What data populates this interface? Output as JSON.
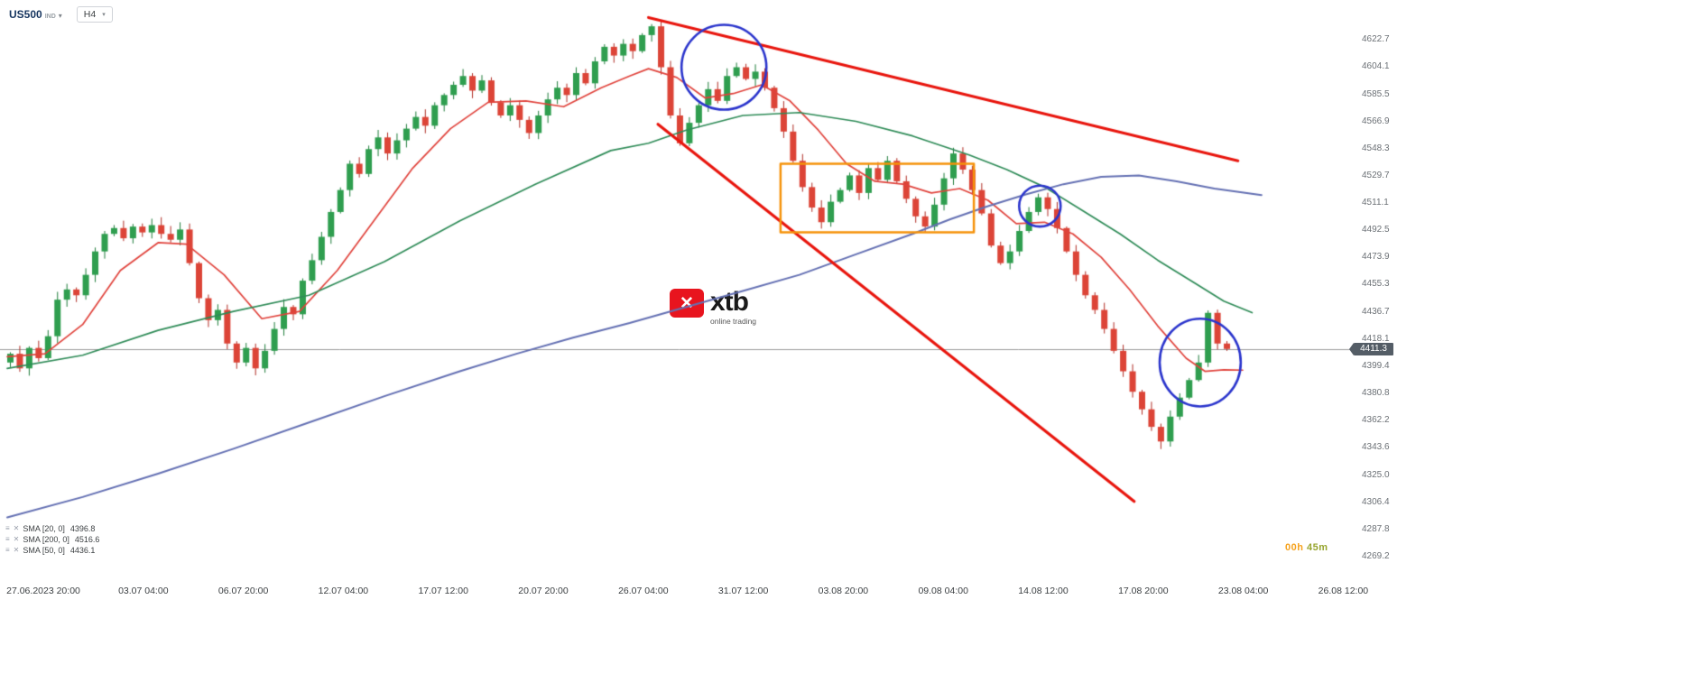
{
  "header": {
    "symbol": "US500",
    "symbol_type": "IND",
    "timeframe": "H4"
  },
  "watermark": {
    "brand": "xtb",
    "tagline": "online trading",
    "logo_glyph": "✕",
    "brand_red": "#e8141e"
  },
  "legend": {
    "rows": [
      {
        "label": "SMA [20, 0]",
        "value": "4396.8"
      },
      {
        "label": "SMA [200, 0]",
        "value": "4516.6"
      },
      {
        "label": "SMA [50, 0]",
        "value": "4436.1"
      }
    ]
  },
  "countdown": {
    "hours": "00h",
    "minutes": "45m"
  },
  "chart_data": {
    "type": "candlestick",
    "symbol": "US500",
    "timeframe": "H4",
    "ylim": [
      4255,
      4650
    ],
    "current_price": 4411.3,
    "current_price_label": "4411.3",
    "y_tick_labels": [
      "4622.7",
      "4604.1",
      "4585.5",
      "4566.9",
      "4548.3",
      "4529.7",
      "4511.1",
      "4492.5",
      "4473.9",
      "4455.3",
      "4436.7",
      "4418.1",
      "4399.4",
      "4380.8",
      "4362.2",
      "4343.6",
      "4325.0",
      "4306.4",
      "4287.8",
      "4269.2"
    ],
    "x_tick_labels": [
      "27.06.2023 20:00",
      "03.07 04:00",
      "06.07 20:00",
      "12.07 04:00",
      "17.07 12:00",
      "20.07 20:00",
      "26.07 04:00",
      "31.07 12:00",
      "03.08 20:00",
      "09.08 04:00",
      "14.08 12:00",
      "17.08 20:00",
      "23.08 04:00",
      "26.08 12:00"
    ],
    "first_open": 4402,
    "closes": [
      4408,
      4398,
      4412,
      4405,
      4420,
      4445,
      4452,
      4448,
      4462,
      4478,
      4490,
      4494,
      4487,
      4495,
      4491,
      4496,
      4490,
      4486,
      4493,
      4470,
      4446,
      4431,
      4438,
      4415,
      4402,
      4412,
      4398,
      4410,
      4425,
      4440,
      4435,
      4458,
      4472,
      4488,
      4505,
      4520,
      4538,
      4531,
      4548,
      4556,
      4545,
      4554,
      4562,
      4570,
      4564,
      4578,
      4585,
      4592,
      4598,
      4588,
      4595,
      4580,
      4571,
      4578,
      4568,
      4559,
      4571,
      4582,
      4590,
      4585,
      4600,
      4593,
      4608,
      4618,
      4612,
      4620,
      4615,
      4626,
      4632,
      4604,
      4571,
      4552,
      4566,
      4578,
      4589,
      4581,
      4598,
      4604,
      4596,
      4601,
      4590,
      4576,
      4560,
      4540,
      4522,
      4508,
      4498,
      4512,
      4520,
      4530,
      4518,
      4535,
      4527,
      4540,
      4526,
      4514,
      4502,
      4495,
      4510,
      4528,
      4545,
      4534,
      4520,
      4504,
      4482,
      4470,
      4478,
      4492,
      4505,
      4515,
      4507,
      4494,
      4478,
      4462,
      4448,
      4438,
      4425,
      4410,
      4396,
      4382,
      4370,
      4358,
      4348,
      4365,
      4378,
      4390,
      4402,
      4436,
      4415,
      4411.3
    ],
    "sma_lines": [
      {
        "name": "SMA 20",
        "value": 4396.8,
        "color_key": "sma20",
        "points": [
          [
            0,
            4406
          ],
          [
            4,
            4408
          ],
          [
            8,
            4428
          ],
          [
            12,
            4465
          ],
          [
            16,
            4484
          ],
          [
            19,
            4483
          ],
          [
            23,
            4462
          ],
          [
            27,
            4432
          ],
          [
            31,
            4437
          ],
          [
            35,
            4465
          ],
          [
            39,
            4500
          ],
          [
            43,
            4535
          ],
          [
            47,
            4562
          ],
          [
            51,
            4580
          ],
          [
            55,
            4581
          ],
          [
            59,
            4577
          ],
          [
            63,
            4590
          ],
          [
            66,
            4598
          ],
          [
            68,
            4603
          ],
          [
            71,
            4597
          ],
          [
            74,
            4583
          ],
          [
            77,
            4586
          ],
          [
            80,
            4592
          ],
          [
            83,
            4581
          ],
          [
            86,
            4561
          ],
          [
            89,
            4538
          ],
          [
            92,
            4526
          ],
          [
            95,
            4524
          ],
          [
            98,
            4518
          ],
          [
            101,
            4521
          ],
          [
            104,
            4513
          ],
          [
            107,
            4497
          ],
          [
            110,
            4498
          ],
          [
            113,
            4490
          ],
          [
            116,
            4474
          ],
          [
            119,
            4452
          ],
          [
            122,
            4427
          ],
          [
            125,
            4405
          ],
          [
            127,
            4396
          ],
          [
            129,
            4397
          ],
          [
            131,
            4396.8
          ]
        ]
      },
      {
        "name": "SMA 50",
        "value": 4436.1,
        "color_key": "sma50",
        "points": [
          [
            0,
            4398
          ],
          [
            8,
            4407
          ],
          [
            16,
            4424
          ],
          [
            24,
            4437
          ],
          [
            32,
            4448
          ],
          [
            40,
            4471
          ],
          [
            48,
            4499
          ],
          [
            56,
            4524
          ],
          [
            64,
            4547
          ],
          [
            68,
            4552
          ],
          [
            72,
            4561
          ],
          [
            78,
            4571
          ],
          [
            84,
            4573
          ],
          [
            90,
            4567
          ],
          [
            96,
            4557
          ],
          [
            102,
            4544
          ],
          [
            106,
            4534
          ],
          [
            110,
            4522
          ],
          [
            114,
            4506
          ],
          [
            118,
            4490
          ],
          [
            122,
            4472
          ],
          [
            126,
            4456
          ],
          [
            129,
            4444
          ],
          [
            132,
            4436.1
          ]
        ]
      },
      {
        "name": "SMA 200",
        "value": 4516.6,
        "color_key": "sma200",
        "points": [
          [
            0,
            4296
          ],
          [
            8,
            4310
          ],
          [
            16,
            4326
          ],
          [
            24,
            4343
          ],
          [
            32,
            4361
          ],
          [
            40,
            4379
          ],
          [
            48,
            4396
          ],
          [
            54,
            4408
          ],
          [
            60,
            4419
          ],
          [
            66,
            4429
          ],
          [
            72,
            4440
          ],
          [
            78,
            4451
          ],
          [
            84,
            4462
          ],
          [
            90,
            4476
          ],
          [
            96,
            4490
          ],
          [
            100,
            4500
          ],
          [
            104,
            4509
          ],
          [
            108,
            4517
          ],
          [
            112,
            4524
          ],
          [
            116,
            4529
          ],
          [
            120,
            4530
          ],
          [
            124,
            4526
          ],
          [
            128,
            4521
          ],
          [
            133,
            4516.6
          ]
        ]
      }
    ],
    "trendlines": [
      {
        "from": [
          68,
          4638
        ],
        "to": [
          130.5,
          4540
        ]
      },
      {
        "from": [
          69,
          4565
        ],
        "to": [
          119.5,
          4307
        ]
      }
    ],
    "annotations": {
      "circles": [
        {
          "bar": 76,
          "price": 4604,
          "rx_bars": 4.5,
          "ry_price": 29
        },
        {
          "bar": 109.5,
          "price": 4509,
          "rx_bars": 2.2,
          "ry_price": 14
        },
        {
          "bar": 126.5,
          "price": 4402,
          "rx_bars": 4.3,
          "ry_price": 30
        }
      ],
      "rects": [
        {
          "bar_from": 82,
          "bar_to": 102.5,
          "price_from": 4491,
          "price_to": 4538
        }
      ]
    },
    "colors": {
      "up": "#2f9e4f",
      "up_border": "#1e7c3a",
      "down": "#dc4437",
      "down_border": "#b02c24",
      "sma20": "#e0433c",
      "sma50": "#2e8b57",
      "sma200": "#6470b3",
      "trendline": "#e8150d",
      "circle": "#2b35cc",
      "rect": "#f5920a",
      "price_line": "#9a9a9a",
      "tag_bg": "#545d66"
    }
  }
}
